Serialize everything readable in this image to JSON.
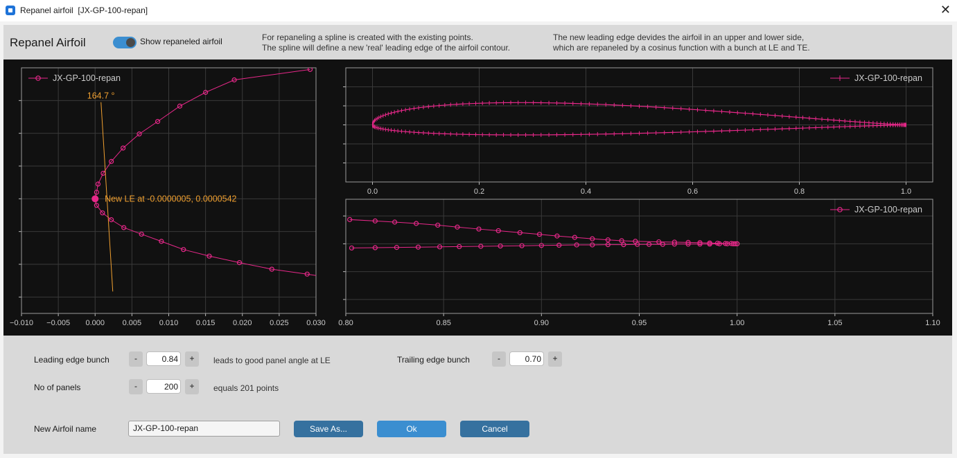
{
  "window": {
    "title": "Repanel airfoil  [JX-GP-100-repan]",
    "close": "✕"
  },
  "header": {
    "title": "Repanel Airfoil",
    "toggle_label": "Show repaneled airfoil",
    "toggle_on": true,
    "info1_line1": "For repaneling a spline is created with the existing points.",
    "info1_line2": "The spline will define a new 'real' leading edge of the airfoil contour.",
    "info2_line1": "The new leading edge devides the airfoil in an upper and lower side,",
    "info2_line2": "which are repaneled by a cosinus function with a bunch at LE and TE."
  },
  "colors": {
    "line": "#e8288a",
    "annotation": "#f0a030",
    "plot_bg": "#111111",
    "accent": "#3b8ed0"
  },
  "chart_data": [
    {
      "type": "line",
      "name": "leading-edge-detail",
      "legend": "JX-GP-100-repan",
      "legend_position": "top-left",
      "grid": true,
      "xlim": [
        -0.01,
        0.03
      ],
      "ylim": [
        -0.035,
        0.04
      ],
      "xticks": [
        -0.01,
        -0.005,
        0.0,
        0.005,
        0.01,
        0.015,
        0.02,
        0.025,
        0.03
      ],
      "xtick_labels": [
        "−0.010",
        "−0.005",
        "0.000",
        "0.005",
        "0.010",
        "0.015",
        "0.020",
        "0.025",
        "0.030"
      ],
      "yticks": [
        -0.03,
        -0.02,
        -0.01,
        0.0,
        0.01,
        0.02,
        0.03
      ],
      "x": [
        0.0292,
        0.0189,
        0.015,
        0.0115,
        0.0085,
        0.006,
        0.0038,
        0.0022,
        0.0011,
        0.0004,
        0.0002,
        0.0,
        0.0002,
        0.001,
        0.0022,
        0.0039,
        0.0063,
        0.009,
        0.012,
        0.0155,
        0.0196,
        0.024,
        0.0288,
        0.0305
      ],
      "y": [
        0.0395,
        0.0363,
        0.0325,
        0.0283,
        0.0236,
        0.0198,
        0.0155,
        0.0114,
        0.0078,
        0.0045,
        0.002,
        0.0,
        -0.002,
        -0.0043,
        -0.0064,
        -0.0088,
        -0.0108,
        -0.013,
        -0.0155,
        -0.0175,
        -0.0195,
        -0.0215,
        -0.023,
        -0.0236
      ],
      "angle_label": "164.7 °",
      "le_label": "New LE at -0.0000005, 0.0000542"
    },
    {
      "type": "line",
      "name": "airfoil-overview",
      "legend": "JX-GP-100-repan",
      "legend_position": "top-right",
      "grid": true,
      "xlim": [
        -0.05,
        1.05
      ],
      "ylim": [
        -0.12,
        0.12
      ],
      "xticks": [
        0.0,
        0.2,
        0.4,
        0.6,
        0.8,
        1.0
      ],
      "xtick_labels": [
        "0.0",
        "0.2",
        "0.4",
        "0.6",
        "0.8",
        "1.0"
      ],
      "yticks": [
        -0.08,
        -0.04,
        0.0,
        0.04,
        0.08
      ],
      "max_thickness_upper": 0.051,
      "max_thickness_lower": 0.023
    },
    {
      "type": "line",
      "name": "trailing-edge-detail",
      "legend": "JX-GP-100-repan",
      "legend_position": "top-right",
      "grid": true,
      "xlim": [
        0.8,
        1.1
      ],
      "ylim": [
        -0.025,
        0.016
      ],
      "xticks": [
        0.8,
        0.85,
        0.9,
        0.95,
        1.0,
        1.05,
        1.1
      ],
      "xtick_labels": [
        "0.80",
        "0.85",
        "0.90",
        "0.95",
        "1.00",
        "1.05",
        "1.10"
      ],
      "yticks": [
        -0.02,
        -0.01,
        0.0,
        0.01
      ],
      "upper_x": [
        0.802,
        0.815,
        0.825,
        0.836,
        0.847,
        0.857,
        0.868,
        0.878,
        0.889,
        0.899,
        0.908,
        0.917,
        0.926,
        0.934,
        0.941,
        0.948,
        0.96,
        0.968,
        0.975,
        0.981,
        0.986,
        0.99,
        0.994,
        0.997,
        0.999,
        1.0
      ],
      "upper_y": [
        0.0087,
        0.0082,
        0.0078,
        0.0073,
        0.0067,
        0.006,
        0.0053,
        0.0047,
        0.004,
        0.0034,
        0.0028,
        0.0023,
        0.0018,
        0.0014,
        0.0011,
        0.0009,
        0.0007,
        0.0006,
        0.0005,
        0.0004,
        0.0003,
        0.0002,
        0.0001,
        0.0001,
        0.0,
        0.0
      ],
      "lower_x": [
        0.803,
        0.815,
        0.826,
        0.837,
        0.848,
        0.858,
        0.869,
        0.879,
        0.89,
        0.9,
        0.909,
        0.918,
        0.926,
        0.934,
        0.942,
        0.949,
        0.955,
        0.962,
        0.968,
        0.975,
        0.981,
        0.986,
        0.991,
        0.995,
        0.998,
        1.0
      ],
      "lower_y": [
        -0.0015,
        -0.0014,
        -0.0013,
        -0.0012,
        -0.0011,
        -0.001,
        -0.0009,
        -0.0008,
        -0.0007,
        -0.0006,
        -0.0005,
        -0.0004,
        -0.0004,
        -0.0003,
        -0.0003,
        -0.0002,
        -0.0002,
        -0.0002,
        -0.0001,
        -0.0001,
        -0.0001,
        -0.0001,
        0.0,
        0.0,
        0.0,
        0.0
      ]
    }
  ],
  "controls": {
    "le_bunch": {
      "label": "Leading edge bunch",
      "value": "0.84",
      "note": "leads to good panel angle at LE",
      "minus": "-",
      "plus": "+"
    },
    "te_bunch": {
      "label": "Trailing edge bunch",
      "value": "0.70",
      "minus": "-",
      "plus": "+"
    },
    "panels": {
      "label": "No of panels",
      "value": "200",
      "note": "equals 201 points",
      "minus": "-",
      "plus": "+"
    }
  },
  "footer": {
    "name_label": "New Airfoil name",
    "name_value": "JX-GP-100-repan",
    "save_as": "Save As...",
    "ok": "Ok",
    "cancel": "Cancel"
  }
}
